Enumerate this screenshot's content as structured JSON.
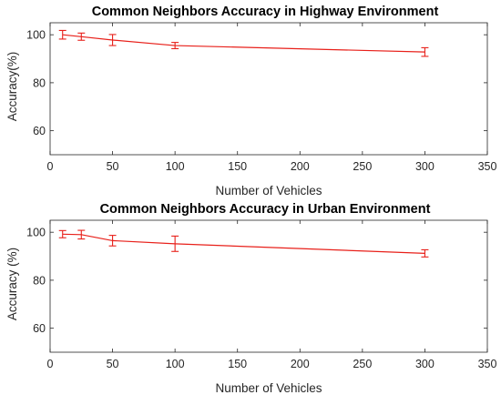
{
  "chart_data": [
    {
      "type": "line",
      "title": "Common Neighbors Accuracy in Highway Environment",
      "xlabel": "Number of Vehicles",
      "ylabel": "Accuracy(%)",
      "xlim": [
        0,
        350
      ],
      "ylim": [
        50,
        105
      ],
      "xticks": [
        0,
        50,
        100,
        150,
        200,
        250,
        300,
        350
      ],
      "yticks": [
        60,
        80,
        100
      ],
      "grid": false,
      "series": [
        {
          "color": "#e8201a",
          "x": [
            10,
            25,
            50,
            100,
            300
          ],
          "y": [
            100,
            99.2,
            97.8,
            95.5,
            92.8
          ],
          "err": [
            1.8,
            1.5,
            2.3,
            1.3,
            1.8
          ]
        }
      ]
    },
    {
      "type": "line",
      "title": "Common Neighbors Accuracy in Urban Environment",
      "xlabel": "Number of Vehicles",
      "ylabel": "Accuracy (%)",
      "xlim": [
        0,
        350
      ],
      "ylim": [
        50,
        105
      ],
      "xticks": [
        0,
        50,
        100,
        150,
        200,
        250,
        300,
        350
      ],
      "yticks": [
        60,
        80,
        100
      ],
      "grid": false,
      "series": [
        {
          "color": "#e8201a",
          "x": [
            10,
            25,
            50,
            100,
            300
          ],
          "y": [
            99.2,
            99,
            96.5,
            95.2,
            91.2
          ],
          "err": [
            1.5,
            1.8,
            2.2,
            3.2,
            1.5
          ]
        }
      ]
    }
  ]
}
